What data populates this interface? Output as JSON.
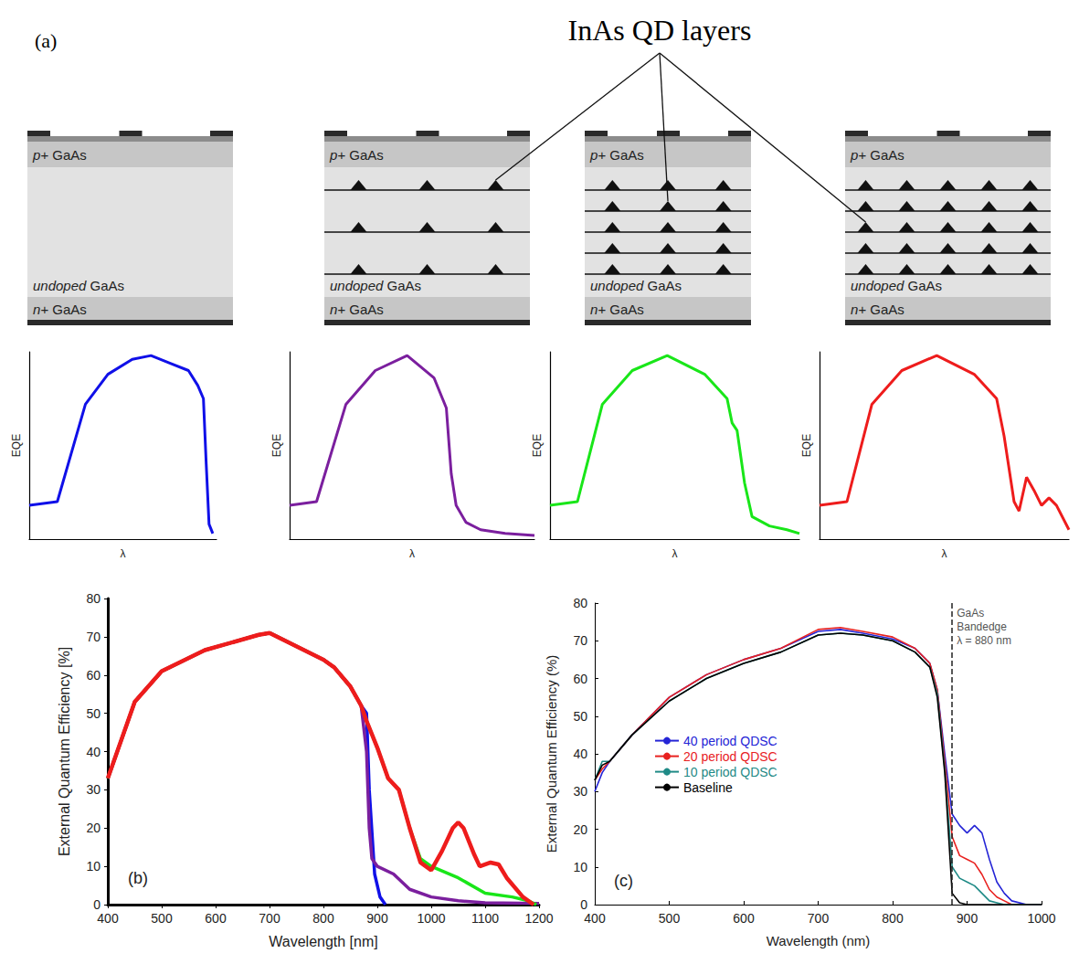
{
  "diagram": {
    "panel": "(a)",
    "title": "InAs QD layers",
    "layers": {
      "top": "p+ GaAs",
      "middle": "undoped GaAs",
      "bottom": "n+ GaAs"
    },
    "structures": [
      {
        "qd_layers": 0,
        "dots_per_layer": 0
      },
      {
        "qd_layers": 3,
        "dots_per_layer": 3
      },
      {
        "qd_layers": 5,
        "dots_per_layer": 3
      },
      {
        "qd_layers": 5,
        "dots_per_layer": 5
      }
    ]
  },
  "chart_data": [
    {
      "type": "line",
      "x_label": "λ",
      "y_label": "EQE",
      "xlim": [
        0,
        100
      ],
      "ylim": [
        0,
        100
      ],
      "tick_labels": false,
      "grid": false,
      "series": [
        {
          "color": "#1010e8",
          "x": [
            0,
            15,
            30,
            42,
            55,
            65,
            75,
            85,
            90,
            93,
            94.5,
            96,
            98
          ],
          "values": [
            18,
            20,
            72,
            88,
            96,
            98,
            94,
            90,
            82,
            75,
            40,
            8,
            3
          ]
        }
      ]
    },
    {
      "type": "line",
      "x_label": "λ",
      "y_label": "EQE",
      "xlim": [
        0,
        100
      ],
      "ylim": [
        0,
        100
      ],
      "tick_labels": false,
      "grid": false,
      "series": [
        {
          "color": "#7b1f9e",
          "x": [
            0,
            11,
            23,
            35,
            48,
            59,
            64,
            66,
            68,
            72,
            78,
            88,
            100
          ],
          "values": [
            18,
            20,
            72,
            90,
            98,
            86,
            70,
            35,
            18,
            9,
            5,
            3,
            2
          ]
        }
      ]
    },
    {
      "type": "line",
      "x_label": "λ",
      "y_label": "EQE",
      "xlim": [
        0,
        100
      ],
      "ylim": [
        0,
        100
      ],
      "tick_labels": false,
      "grid": false,
      "series": [
        {
          "color": "#19e619",
          "x": [
            0,
            11,
            21,
            33,
            47,
            62,
            71,
            73,
            75,
            78,
            81,
            88,
            95,
            100
          ],
          "values": [
            18,
            20,
            72,
            90,
            98,
            88,
            75,
            62,
            58,
            30,
            12,
            7,
            5,
            3
          ]
        }
      ]
    },
    {
      "type": "line",
      "x_label": "λ",
      "y_label": "EQE",
      "xlim": [
        0,
        100
      ],
      "ylim": [
        0,
        100
      ],
      "tick_labels": false,
      "grid": false,
      "series": [
        {
          "color": "#ee1c1c",
          "x": [
            0,
            11,
            21,
            33,
            47,
            62,
            71,
            74,
            78,
            80,
            83,
            86,
            89,
            92,
            95,
            100
          ],
          "values": [
            18,
            20,
            72,
            90,
            98,
            88,
            75,
            55,
            20,
            15,
            33,
            26,
            18,
            22,
            18,
            5
          ]
        }
      ]
    },
    {
      "type": "line",
      "panel": "(b)",
      "x_label": "Wavelength [nm]",
      "y_label": "External Quantum Efficiency [%]",
      "xlim": [
        400,
        1200
      ],
      "xticks": [
        400,
        500,
        600,
        700,
        800,
        900,
        1000,
        1100,
        1200
      ],
      "ylim": [
        0,
        80
      ],
      "yticks": [
        0,
        10,
        20,
        30,
        40,
        50,
        60,
        70,
        80
      ],
      "grid": false,
      "series": [
        {
          "color": "#1010e8",
          "x": [
            400,
            450,
            500,
            580,
            680,
            700,
            800,
            820,
            850,
            870,
            880,
            885,
            895,
            905,
            915
          ],
          "values": [
            33,
            53,
            61,
            66.5,
            70.5,
            71,
            64,
            62,
            57,
            52,
            50,
            30,
            8,
            2,
            0
          ]
        },
        {
          "color": "#7b1f9e",
          "x": [
            400,
            450,
            500,
            580,
            680,
            700,
            800,
            820,
            850,
            870,
            880,
            885,
            890,
            900,
            930,
            960,
            1000,
            1050,
            1100,
            1200
          ],
          "values": [
            33,
            53,
            61,
            66.5,
            70.5,
            71,
            64,
            62,
            57,
            52,
            40,
            20,
            12,
            10,
            8,
            4,
            2,
            1,
            0.5,
            0.3
          ]
        },
        {
          "color": "#19e619",
          "x": [
            400,
            450,
            500,
            580,
            680,
            700,
            800,
            820,
            850,
            870,
            880,
            900,
            920,
            940,
            960,
            980,
            1000,
            1050,
            1100,
            1150,
            1180,
            1195
          ],
          "values": [
            33,
            53,
            61,
            66.5,
            70.5,
            71,
            64,
            62,
            57,
            52,
            48,
            41,
            33,
            30,
            20,
            12,
            10,
            7,
            3,
            2,
            1,
            0
          ]
        },
        {
          "color": "#ee1c1c",
          "x": [
            400,
            450,
            500,
            580,
            680,
            700,
            800,
            820,
            850,
            870,
            880,
            900,
            920,
            940,
            960,
            980,
            1000,
            1020,
            1040,
            1050,
            1060,
            1080,
            1090,
            1110,
            1125,
            1140,
            1170,
            1190
          ],
          "values": [
            33,
            53,
            61,
            66.5,
            70.5,
            71,
            64,
            62,
            57,
            52,
            48,
            41,
            33,
            30,
            20,
            11,
            9,
            14,
            20,
            21.5,
            20,
            13,
            10,
            11,
            10.5,
            7,
            2,
            0
          ]
        }
      ]
    },
    {
      "type": "line",
      "panel": "(c)",
      "x_label": "Wavelength (nm)",
      "y_label": "External Quantum Efficiency (%)",
      "xlim": [
        400,
        1000
      ],
      "xticks": [
        400,
        500,
        600,
        700,
        800,
        900,
        1000
      ],
      "ylim": [
        0,
        80
      ],
      "yticks": [
        0,
        10,
        20,
        30,
        40,
        50,
        60,
        70,
        80
      ],
      "grid": false,
      "legend": "left",
      "annotations": [
        {
          "x": 880,
          "text": [
            "GaAs",
            "Bandedge",
            "λ = 880 nm"
          ],
          "line_style": "dashed"
        }
      ],
      "series": [
        {
          "name": "40 period QDSC",
          "color": "#2525d6",
          "x": [
            400,
            410,
            420,
            450,
            500,
            550,
            600,
            650,
            700,
            730,
            760,
            800,
            830,
            850,
            860,
            870,
            880,
            890,
            900,
            910,
            920,
            930,
            940,
            950,
            960,
            980,
            1000
          ],
          "values": [
            30,
            35,
            38,
            45,
            55,
            61,
            65,
            68,
            72.5,
            73,
            72,
            70.5,
            68,
            64,
            57,
            40,
            24,
            21,
            19,
            21,
            19,
            12,
            6,
            3,
            1,
            0,
            0
          ]
        },
        {
          "name": "20 period QDSC",
          "color": "#e8211f",
          "x": [
            400,
            410,
            420,
            450,
            500,
            550,
            600,
            650,
            700,
            730,
            760,
            800,
            830,
            850,
            860,
            870,
            880,
            890,
            900,
            910,
            920,
            930,
            940,
            950,
            960,
            980,
            1000
          ],
          "values": [
            33,
            36,
            38,
            45,
            55,
            61,
            65,
            68,
            73,
            73.5,
            72.5,
            71,
            68,
            64,
            57,
            38,
            18,
            13,
            12,
            11,
            8,
            4,
            2,
            1,
            0,
            0,
            0
          ]
        },
        {
          "name": "10 period QDSC",
          "color": "#1f8a86",
          "x": [
            400,
            410,
            420,
            450,
            500,
            550,
            600,
            650,
            700,
            730,
            760,
            800,
            830,
            850,
            860,
            870,
            880,
            890,
            900,
            910,
            920,
            930,
            940,
            950,
            960,
            980,
            1000
          ],
          "values": [
            33,
            38,
            38,
            45,
            54,
            60,
            64,
            67,
            71.5,
            72,
            71.5,
            70,
            67,
            63,
            56,
            36,
            10,
            7,
            6,
            5,
            3,
            1,
            0.5,
            0,
            0,
            0,
            0
          ]
        },
        {
          "name": "Baseline",
          "color": "#000000",
          "x": [
            400,
            410,
            420,
            450,
            500,
            550,
            600,
            650,
            700,
            730,
            760,
            800,
            830,
            850,
            860,
            870,
            880,
            890,
            900,
            910,
            920,
            930,
            940,
            950,
            960,
            980,
            1000
          ],
          "values": [
            33,
            37,
            38,
            45,
            54,
            60,
            64,
            67,
            71.5,
            72,
            71.5,
            70,
            67,
            63,
            55,
            35,
            3,
            0.5,
            0,
            0,
            0,
            0,
            0,
            0,
            0,
            0,
            0
          ]
        }
      ]
    }
  ]
}
